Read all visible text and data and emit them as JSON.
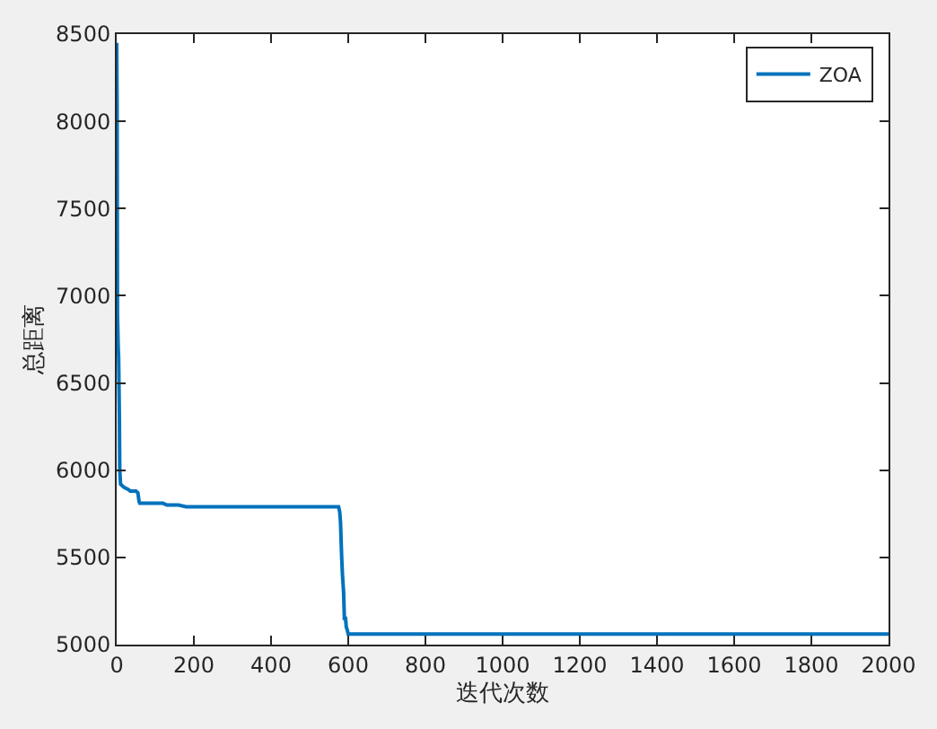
{
  "chart_data": {
    "type": "line",
    "xlabel": "迭代次数",
    "ylabel": "总距离",
    "x": [
      0,
      1,
      2,
      4,
      5,
      7,
      8,
      10,
      15,
      20,
      30,
      35,
      50,
      55,
      58,
      60,
      100,
      120,
      130,
      160,
      180,
      400,
      575,
      578,
      580,
      583,
      585,
      588,
      590,
      593,
      595,
      598,
      600,
      1000,
      2000
    ],
    "series": [
      {
        "name": "ZOA",
        "color": "#0072bd",
        "values": [
          8450,
          8100,
          6900,
          6700,
          6650,
          6300,
          6000,
          5920,
          5910,
          5900,
          5890,
          5880,
          5880,
          5870,
          5820,
          5810,
          5810,
          5810,
          5800,
          5800,
          5790,
          5790,
          5790,
          5760,
          5700,
          5500,
          5400,
          5300,
          5150,
          5150,
          5100,
          5080,
          5060,
          5060,
          5060
        ]
      }
    ],
    "xlim": [
      0,
      2000
    ],
    "xticks": [
      0,
      200,
      400,
      600,
      800,
      1000,
      1200,
      1400,
      1600,
      1800,
      2000
    ],
    "ylim": [
      5000,
      8500
    ],
    "yticks": [
      5000,
      5500,
      6000,
      6500,
      7000,
      7500,
      8000,
      8500
    ],
    "grid": false,
    "legend": "top right",
    "line_style": "solid",
    "marker": "none"
  }
}
